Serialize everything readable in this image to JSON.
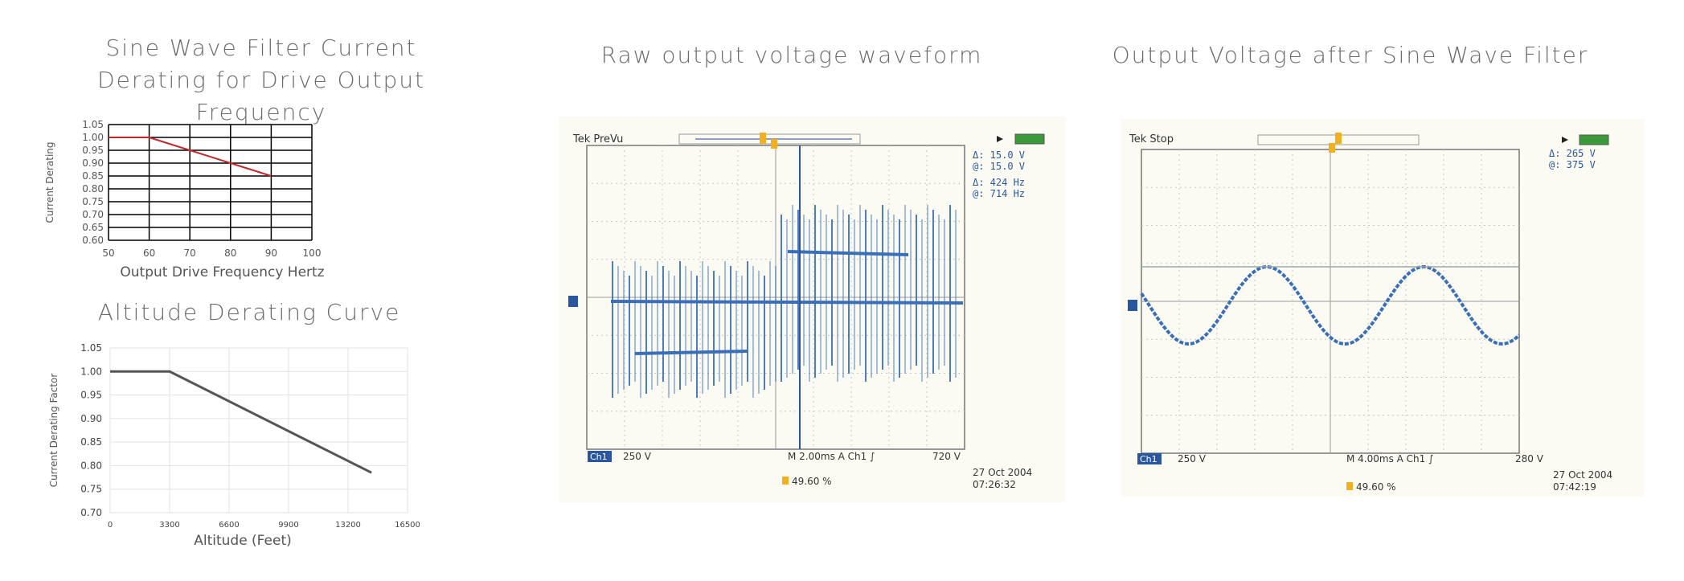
{
  "panels": {
    "filter_title": "Sine Wave Filter Current Derating for Drive Output Frequency",
    "altitude_title": "Altitude Derating Curve",
    "raw_title": "Raw output voltage waveform",
    "filtered_title": "Output Voltage after Sine Wave Filter"
  },
  "scope_raw": {
    "mode": "Tek PreVu",
    "readouts": [
      "Δ:  15.0 V",
      "@:  15.0 V",
      "Δ:  424 Hz",
      "@:  714 Hz"
    ],
    "channel": "Ch1",
    "volts_div": "250 V",
    "timebase": "M 2.00ms  A  Ch1  ∫",
    "trigger_level": "720 V",
    "date": "27 Oct  2004",
    "time": "07:26:32",
    "percent": "49.60 %"
  },
  "scope_filtered": {
    "mode": "Tek Stop",
    "readouts": [
      "Δ:  265 V",
      "@:  375 V"
    ],
    "channel": "Ch1",
    "volts_div": "250 V",
    "timebase": "M 4.00ms  A  Ch1  ∫",
    "trigger_level": "280 V",
    "date": "27 Oct  2004",
    "time": "07:42:19",
    "percent": "49.60 %"
  },
  "colors": {
    "filter_line": "#c0282d",
    "altitude_line": "#555555",
    "trace": "#3a6fb8",
    "grid_dark": "#000000",
    "scope_bg": "#fbfbf3"
  },
  "chart_data": [
    {
      "type": "line",
      "title": "",
      "xlabel": "Output Drive Frequency Hertz",
      "ylabel": "Current Derating",
      "xlim": [
        50,
        100
      ],
      "ylim": [
        0.6,
        1.05
      ],
      "x_ticks": [
        "50",
        "60",
        "70",
        "80",
        "90",
        "100"
      ],
      "y_ticks": [
        "1.05",
        "1.00",
        "0.95",
        "0.90",
        "0.85",
        "0.80",
        "0.75",
        "0.70",
        "0.65",
        "0.60"
      ],
      "series": [
        {
          "x": [
            50,
            60,
            70,
            80,
            90
          ],
          "y": [
            1.0,
            1.0,
            0.95,
            0.9,
            0.85
          ]
        }
      ],
      "grid": true
    },
    {
      "type": "line",
      "title": "Altitude Derating Curve",
      "xlabel": "Altitude (Feet)",
      "ylabel": "Current Derating Factor",
      "xlim": [
        0,
        16500
      ],
      "ylim": [
        0.7,
        1.05
      ],
      "x_ticks": [
        "0",
        "3300",
        "6600",
        "9900",
        "13200",
        "16500"
      ],
      "y_ticks": [
        "1.05",
        "1.00",
        "0.95",
        "0.90",
        "0.85",
        "0.80",
        "0.75",
        "0.70"
      ],
      "series": [
        {
          "x": [
            0,
            3300,
            14500
          ],
          "y": [
            1.0,
            1.0,
            0.785
          ]
        }
      ],
      "grid": true
    }
  ]
}
